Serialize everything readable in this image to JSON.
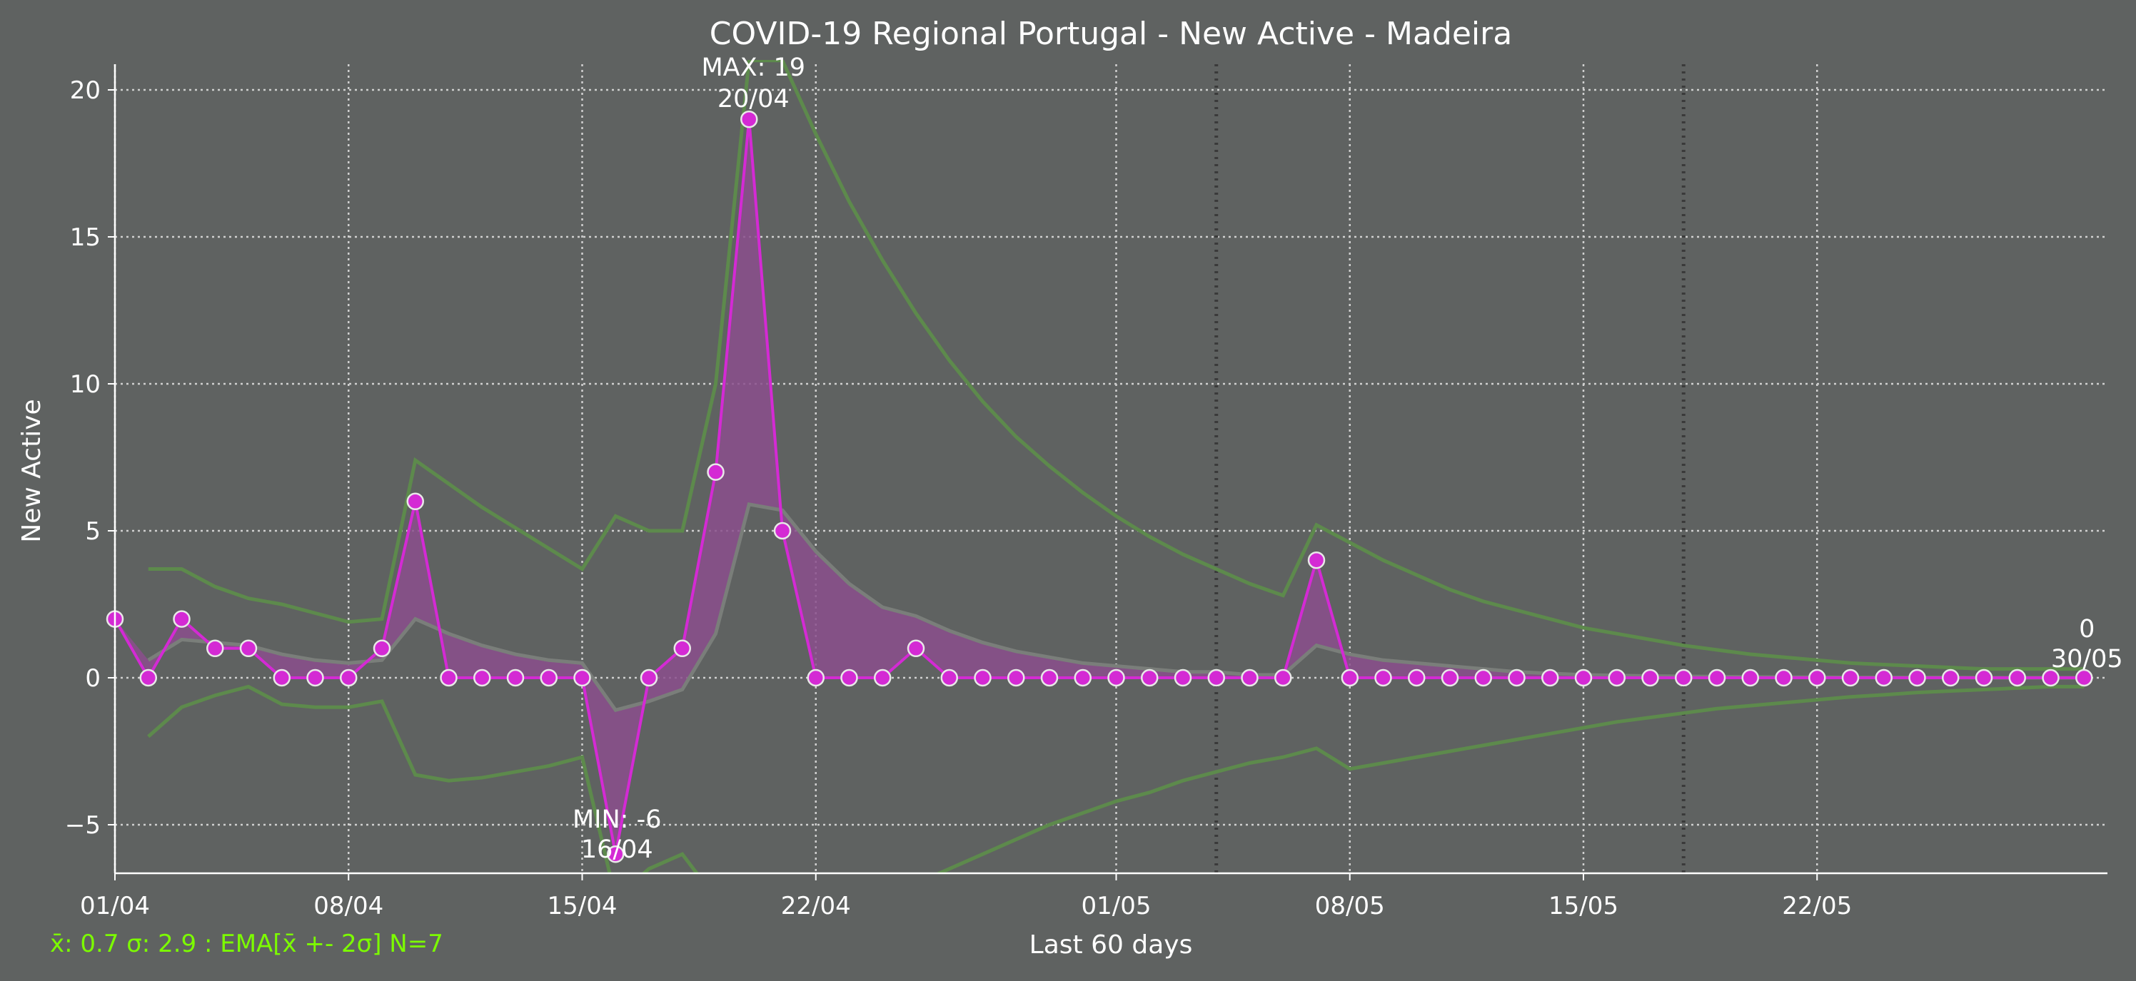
{
  "chart_data": {
    "type": "line",
    "title": "COVID-19 Regional Portugal - New Active - Madeira",
    "xlabel": "Last 60 days",
    "ylabel": "New Active",
    "x_start": "01/04",
    "x_tick_labels": [
      "01/04",
      "08/04",
      "15/04",
      "22/04",
      "01/05",
      "08/05",
      "15/05",
      "22/05"
    ],
    "x_tick_days": [
      0,
      7,
      14,
      21,
      30,
      37,
      44,
      51
    ],
    "y_ticks": [
      -5,
      0,
      5,
      10,
      15,
      20
    ],
    "ylim": [
      -6.5,
      21
    ],
    "grid": true,
    "weekly_markers_days": [
      33,
      47
    ],
    "series": [
      {
        "role": "new_active",
        "values": [
          2,
          0,
          2,
          1,
          1,
          0,
          0,
          0,
          1,
          6,
          0,
          0,
          0,
          0,
          0,
          -6,
          0,
          1,
          7,
          19,
          5,
          0,
          0,
          0,
          1,
          0,
          0,
          0,
          0,
          0,
          0,
          0,
          0,
          0,
          0,
          0,
          4,
          0,
          0,
          0,
          0,
          0,
          0,
          0,
          0,
          0,
          0,
          0,
          0,
          0,
          0,
          0,
          0,
          0,
          0,
          0,
          0,
          0,
          0,
          0
        ]
      },
      {
        "role": "ema",
        "values": [
          null,
          0.6,
          1.3,
          1.2,
          1.1,
          0.8,
          0.6,
          0.5,
          0.6,
          2.0,
          1.5,
          1.1,
          0.8,
          0.6,
          0.5,
          -1.1,
          -0.8,
          -0.4,
          1.5,
          5.9,
          5.7,
          4.3,
          3.2,
          2.4,
          2.1,
          1.6,
          1.2,
          0.9,
          0.7,
          0.5,
          0.4,
          0.3,
          0.2,
          0.2,
          0.1,
          0.1,
          1.1,
          0.8,
          0.6,
          0.5,
          0.4,
          0.3,
          0.2,
          0.15,
          0.1,
          0.08,
          0.06,
          0.05,
          0.04,
          0.03,
          0.02,
          0.02,
          0.01,
          0.01,
          0.01,
          0.01,
          0,
          0,
          0,
          0
        ]
      },
      {
        "role": "upper_band",
        "values": [
          null,
          3.7,
          3.7,
          3.1,
          2.7,
          2.5,
          2.2,
          1.9,
          2.0,
          7.4,
          6.6,
          5.8,
          5.1,
          4.4,
          3.7,
          5.5,
          5.0,
          5.0,
          10.0,
          21.0,
          21.0,
          18.5,
          16.2,
          14.2,
          12.4,
          10.8,
          9.4,
          8.2,
          7.2,
          6.3,
          5.5,
          4.8,
          4.2,
          3.7,
          3.2,
          2.8,
          5.2,
          4.6,
          4.0,
          3.5,
          3.0,
          2.6,
          2.3,
          2.0,
          1.7,
          1.5,
          1.3,
          1.1,
          0.95,
          0.8,
          0.7,
          0.6,
          0.5,
          0.45,
          0.4,
          0.35,
          0.3,
          0.3,
          0.3,
          0.3
        ]
      },
      {
        "role": "lower_band",
        "values": [
          null,
          -2.0,
          -1.0,
          -0.6,
          -0.3,
          -0.9,
          -1.0,
          -1.0,
          -0.8,
          -3.3,
          -3.5,
          -3.4,
          -3.2,
          -3.0,
          -2.7,
          -7.5,
          -6.5,
          -6.0,
          -7.5,
          -8.5,
          -9.0,
          -8.5,
          -8.0,
          -7.5,
          -7.0,
          -6.5,
          -6.0,
          -5.5,
          -5.0,
          -4.6,
          -4.2,
          -3.9,
          -3.5,
          -3.2,
          -2.9,
          -2.7,
          -2.4,
          -3.1,
          -2.9,
          -2.7,
          -2.5,
          -2.3,
          -2.1,
          -1.9,
          -1.7,
          -1.5,
          -1.35,
          -1.2,
          -1.05,
          -0.95,
          -0.85,
          -0.75,
          -0.65,
          -0.58,
          -0.5,
          -0.45,
          -0.4,
          -0.35,
          -0.3,
          -0.3
        ]
      }
    ],
    "annotations": {
      "max": {
        "line1": "MAX: 19",
        "line2": "20/04",
        "day": 19,
        "value": 19
      },
      "min": {
        "line1": "MIN: -6",
        "line2": "16/04",
        "day": 15,
        "value": -6
      },
      "last": {
        "line1": "0",
        "line2": "30/05",
        "day": 59,
        "value": 0
      }
    },
    "footer": "x̄: 0.7 σ: 2.9 : EMA[x̄ +- 2σ] N=7",
    "colors": {
      "background": "#5f6261",
      "main_line": "#d42ad4",
      "fill": "#8b4f8d",
      "marker_edge": "#e8e8e8",
      "band": "#5d8a4c",
      "ema": "#7a7e7a",
      "grid": "#d0d0d0",
      "footer": "#7CFC00"
    }
  }
}
